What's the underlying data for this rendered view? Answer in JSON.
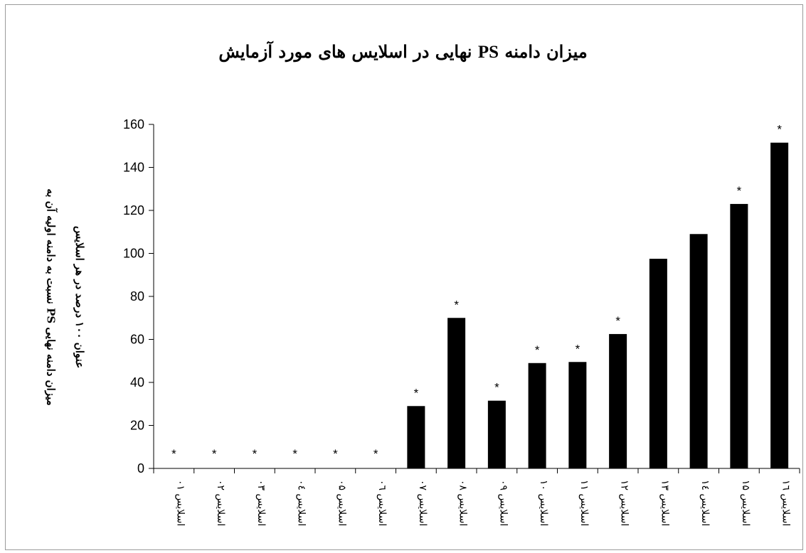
{
  "chart_data": {
    "type": "bar",
    "title": "میزان دامنه PS نهایی در اسلایس های مورد آزمایش",
    "title_parts": {
      "before": "میزان دامنه ",
      "term": "PS",
      "after": " نهایی در اسلایس های مورد آزمایش"
    },
    "ylabel_line1": "میزان دامنه نهایی PS نسبت به دامنه اولیه آن به",
    "ylabel_line2": "عنوان ۱۰۰ درصد در هر اسلایس",
    "xlabel": "",
    "ylim": [
      0,
      160
    ],
    "yticks": [
      0,
      20,
      40,
      60,
      80,
      100,
      120,
      140,
      160
    ],
    "categories": [
      "اسلایس ۰۱",
      "اسلایس ۰۲",
      "اسلایس ۰۳",
      "اسلایس ۰٤",
      "اسلایس ۰۵",
      "اسلایس ۰٦",
      "اسلایس ۰۷",
      "اسلایس ۰۸",
      "اسلایس ۰۹",
      "اسلایس ۱۰",
      "اسلایس ۱۱",
      "اسلایس ۱۲",
      "اسلایس ۱۳",
      "اسلایس ۱٤",
      "اسلایس ۱۵",
      "اسلایس ۱٦"
    ],
    "values": [
      0,
      0,
      0,
      0,
      0,
      0,
      29,
      70,
      31.5,
      49,
      49.5,
      62.5,
      97.5,
      109,
      123,
      151.5
    ],
    "significant": [
      true,
      true,
      true,
      true,
      true,
      true,
      true,
      true,
      true,
      true,
      true,
      true,
      false,
      false,
      true,
      true
    ],
    "significance_marker": "*",
    "bar_color": "#000000",
    "grid": false,
    "legend": "none"
  }
}
